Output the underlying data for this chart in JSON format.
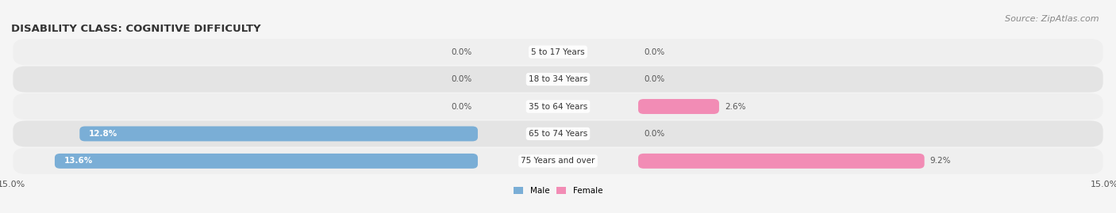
{
  "title": "DISABILITY CLASS: COGNITIVE DIFFICULTY",
  "source": "Source: ZipAtlas.com",
  "categories": [
    "5 to 17 Years",
    "18 to 34 Years",
    "35 to 64 Years",
    "65 to 74 Years",
    "75 Years and over"
  ],
  "male_values": [
    0.0,
    0.0,
    0.0,
    12.8,
    13.6
  ],
  "female_values": [
    0.0,
    0.0,
    2.6,
    0.0,
    9.2
  ],
  "x_max": 15.0,
  "male_color": "#7aaed6",
  "female_color": "#f28cb5",
  "row_bg_light": "#efefef",
  "row_bg_dark": "#e4e4e4",
  "title_fontsize": 9.5,
  "label_fontsize": 7.5,
  "tick_fontsize": 8,
  "source_fontsize": 8,
  "figsize": [
    14.06,
    2.69
  ],
  "dpi": 100
}
